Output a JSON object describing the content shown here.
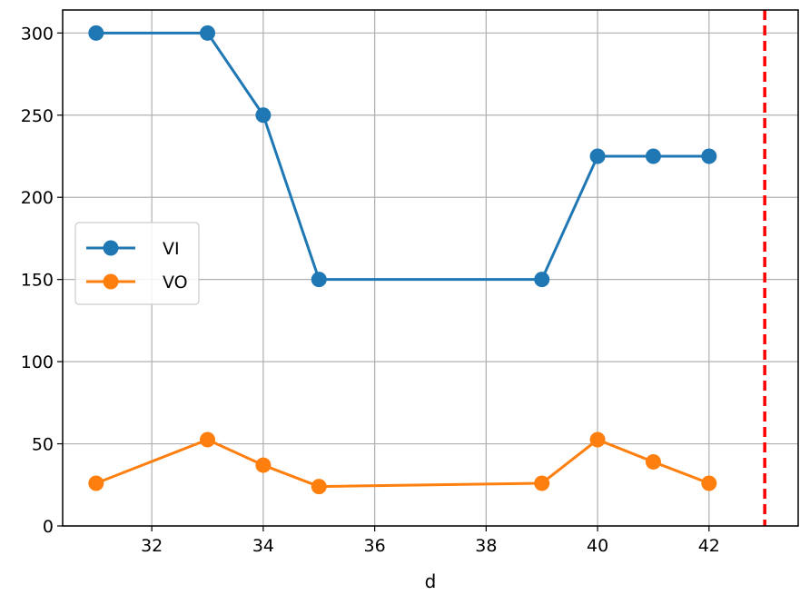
{
  "chart_data": {
    "type": "line",
    "title": "",
    "xlabel": "d",
    "ylabel": "",
    "x": [
      31,
      33,
      34,
      35,
      39,
      40,
      41,
      42
    ],
    "series": [
      {
        "name": "VI",
        "color": "#1f77b4",
        "values": [
          300,
          300,
          250,
          150,
          150,
          225,
          225,
          225
        ]
      },
      {
        "name": "VO",
        "color": "#ff7f0e",
        "values": [
          26,
          52.5,
          37,
          24,
          26,
          52.5,
          39,
          26
        ]
      }
    ],
    "xlim": [
      30.4,
      43.6
    ],
    "ylim": [
      0,
      314
    ],
    "xticks": [
      32,
      34,
      36,
      38,
      40,
      42
    ],
    "yticks": [
      0,
      50,
      100,
      150,
      200,
      250,
      300
    ],
    "reference_line": {
      "x": 43,
      "color": "#ff0000",
      "style": "dashed"
    },
    "grid": true,
    "legend_position": "center-left",
    "marker": "circle"
  }
}
